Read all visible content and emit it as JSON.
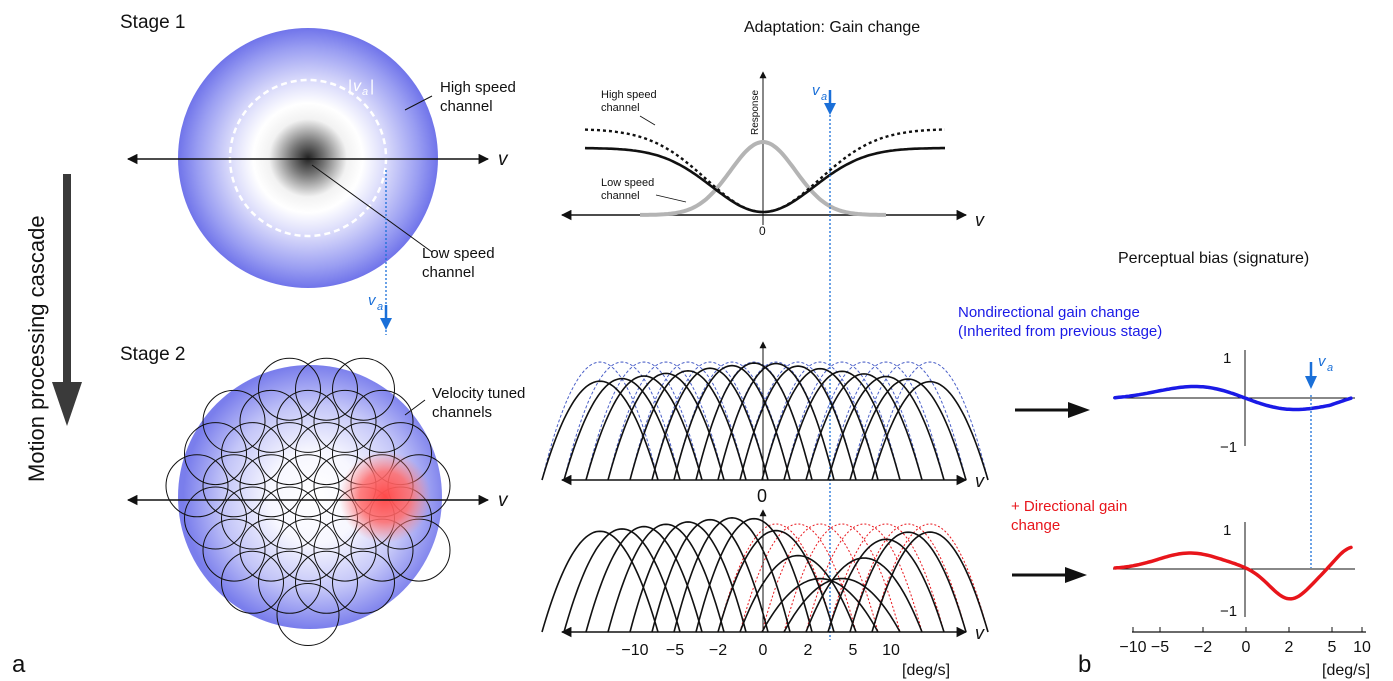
{
  "panel_a": "a",
  "panel_b": "b",
  "cascade_label": "Motion processing cascade",
  "stage1": {
    "title": "Stage 1",
    "high_speed_1": "High speed",
    "high_speed_2": "channel",
    "low_speed_1": "Low speed",
    "low_speed_2": "channel",
    "va_abs_bar_l": "|",
    "va_abs_v": "v",
    "va_abs_sub": "a",
    "va_abs_bar_r": "|",
    "v_axis": "v"
  },
  "stage2": {
    "title": "Stage 2",
    "tuned_1": "Velocity tuned",
    "tuned_2": "channels",
    "v_axis": "v"
  },
  "va_marker": {
    "v": "v",
    "sub": "a"
  },
  "adaptation": {
    "title": "Adaptation: Gain change",
    "response_label": "Response",
    "high_speed_1": "High speed",
    "high_speed_2": "channel",
    "low_speed_1": "Low speed",
    "low_speed_2": "channel",
    "zero": "0",
    "v_axis": "v"
  },
  "middle_panel": {
    "zero": "0",
    "v_axis": "v"
  },
  "bottom_panel": {
    "v_axis": "v",
    "ticks": [
      "−10",
      "−5",
      "−2",
      "0",
      "2",
      "5",
      "10"
    ],
    "unit": "[deg/s]"
  },
  "bias": {
    "title": "Perceptual bias (signature)",
    "nondir_1": "Nondirectional gain change",
    "nondir_2": "(Inherited from previous stage)",
    "dir_1": "+ Directional gain",
    "dir_2": "change",
    "plot1_top": "1",
    "plot1_bottom": "−1",
    "plot2_top": "1",
    "plot2_bottom": "−1",
    "xticks": [
      "−10",
      "−5",
      "−2",
      "0",
      "2",
      "5",
      "10"
    ],
    "unit": "[deg/s]"
  },
  "colors": {
    "blue": "#1a1ae6",
    "red": "#e8151b",
    "marker_blue": "#1a6fd8",
    "lavender": "#7b80ee"
  }
}
